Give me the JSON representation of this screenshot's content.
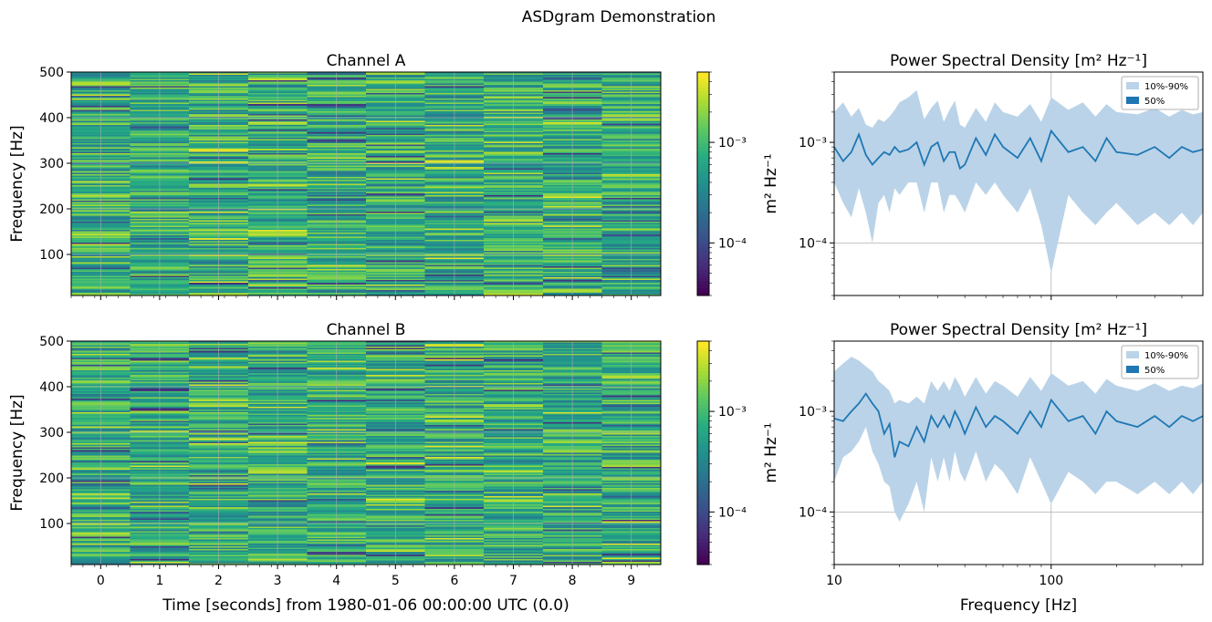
{
  "figure": {
    "title": "ASDgram Demonstration"
  },
  "colors": {
    "fill": "#1f77b4",
    "fill_light": "#bad3e8",
    "grid": "#b0b0b0"
  },
  "chart_data": [
    {
      "type": "heatmap",
      "title": "Channel A",
      "ylabel": "Frequency [Hz]",
      "xlabel": "",
      "x": [
        0,
        1,
        2,
        3,
        4,
        5,
        6,
        7,
        8,
        9
      ],
      "xlim": [
        -0.5,
        9.5
      ],
      "ylim": [
        10,
        500
      ],
      "yticks": [
        100,
        200,
        300,
        400,
        500
      ],
      "colorbar": {
        "label": "m² Hz⁻¹",
        "scale": "log",
        "range": [
          3e-05,
          0.005
        ],
        "ticks": [
          "10⁻⁴",
          "10⁻³"
        ]
      },
      "colormap": "viridis",
      "seed": 11
    },
    {
      "type": "line",
      "title": "Power Spectral Density [m² Hz⁻¹]",
      "xscale": "log",
      "yscale": "log",
      "xlim": [
        10,
        500
      ],
      "ylim": [
        3e-05,
        0.005
      ],
      "yticks": [
        "10⁻⁴",
        "10⁻³"
      ],
      "xticks": [],
      "grid": true,
      "legend": {
        "placement": "upper-right",
        "entries": [
          "10%-90%",
          "50%"
        ]
      },
      "series": [
        {
          "name": "50%",
          "x": [
            10,
            11,
            12,
            13,
            14,
            15,
            16,
            17,
            18,
            19,
            20,
            22,
            24,
            26,
            28,
            30,
            32,
            34,
            36,
            38,
            40,
            45,
            50,
            55,
            60,
            70,
            80,
            90,
            100,
            120,
            140,
            160,
            180,
            200,
            250,
            300,
            350,
            400,
            450,
            500
          ],
          "y": [
            0.0009,
            0.00065,
            0.0008,
            0.0012,
            0.00075,
            0.0006,
            0.0007,
            0.0008,
            0.00075,
            0.0009,
            0.0008,
            0.00085,
            0.001,
            0.0006,
            0.0009,
            0.001,
            0.00065,
            0.0008,
            0.0008,
            0.00055,
            0.0006,
            0.0011,
            0.00075,
            0.0012,
            0.0009,
            0.0007,
            0.0011,
            0.00065,
            0.0013,
            0.0008,
            0.0009,
            0.00065,
            0.0011,
            0.0008,
            0.00075,
            0.0009,
            0.0007,
            0.0009,
            0.0008,
            0.00085
          ]
        },
        {
          "name": "10%-90%",
          "x": [
            10,
            11,
            12,
            13,
            14,
            15,
            16,
            17,
            18,
            19,
            20,
            22,
            24,
            26,
            28,
            30,
            32,
            34,
            36,
            38,
            40,
            45,
            50,
            55,
            60,
            70,
            80,
            90,
            100,
            120,
            140,
            160,
            180,
            200,
            250,
            300,
            350,
            400,
            450,
            500
          ],
          "low": [
            0.0004,
            0.00025,
            0.00018,
            0.00035,
            0.0002,
            0.0001,
            0.00025,
            0.0003,
            0.0002,
            0.00035,
            0.0003,
            0.0004,
            0.0004,
            0.0002,
            0.0004,
            0.0004,
            0.0002,
            0.0003,
            0.0003,
            0.00025,
            0.0002,
            0.0004,
            0.0003,
            0.0004,
            0.0003,
            0.0002,
            0.00035,
            0.00015,
            5e-05,
            0.0003,
            0.0002,
            0.00015,
            0.0002,
            0.00025,
            0.00015,
            0.0002,
            0.00015,
            0.0002,
            0.00015,
            0.0002
          ],
          "high": [
            0.002,
            0.0025,
            0.0018,
            0.0022,
            0.0015,
            0.0014,
            0.0017,
            0.0016,
            0.0018,
            0.0021,
            0.0025,
            0.0028,
            0.0033,
            0.0017,
            0.0022,
            0.0026,
            0.0016,
            0.0021,
            0.0026,
            0.0015,
            0.0014,
            0.0022,
            0.0016,
            0.0025,
            0.002,
            0.0018,
            0.0024,
            0.0016,
            0.0028,
            0.0021,
            0.0025,
            0.0018,
            0.0024,
            0.002,
            0.0019,
            0.0022,
            0.0018,
            0.0021,
            0.0019,
            0.002
          ]
        }
      ]
    },
    {
      "type": "heatmap",
      "title": "Channel B",
      "ylabel": "Frequency [Hz]",
      "xlabel": "Time [seconds] from 1980-01-06 00:00:00 UTC (0.0)",
      "x": [
        0,
        1,
        2,
        3,
        4,
        5,
        6,
        7,
        8,
        9
      ],
      "xticks": [
        "0",
        "1",
        "2",
        "3",
        "4",
        "5",
        "6",
        "7",
        "8",
        "9"
      ],
      "xlim": [
        -0.5,
        9.5
      ],
      "ylim": [
        10,
        500
      ],
      "yticks": [
        100,
        200,
        300,
        400,
        500
      ],
      "colorbar": {
        "label": "m² Hz⁻¹",
        "scale": "log",
        "range": [
          3e-05,
          0.005
        ],
        "ticks": [
          "10⁻⁴",
          "10⁻³"
        ]
      },
      "colormap": "viridis",
      "seed": 29
    },
    {
      "type": "line",
      "title": "Power Spectral Density [m² Hz⁻¹]",
      "xscale": "log",
      "yscale": "log",
      "xlim": [
        10,
        500
      ],
      "ylim": [
        3e-05,
        0.005
      ],
      "xlabel": "Frequency [Hz]",
      "xticks": [
        "10",
        "100"
      ],
      "yticks": [
        "10⁻⁴",
        "10⁻³"
      ],
      "grid": true,
      "legend": {
        "placement": "upper-right",
        "entries": [
          "10%-90%",
          "50%"
        ]
      },
      "series": [
        {
          "name": "50%",
          "x": [
            10,
            11,
            12,
            13,
            14,
            15,
            16,
            17,
            18,
            19,
            20,
            22,
            24,
            26,
            28,
            30,
            32,
            34,
            36,
            38,
            40,
            45,
            50,
            55,
            60,
            70,
            80,
            90,
            100,
            120,
            140,
            160,
            180,
            200,
            250,
            300,
            350,
            400,
            450,
            500
          ],
          "y": [
            0.00085,
            0.0008,
            0.001,
            0.0012,
            0.0015,
            0.0012,
            0.001,
            0.0006,
            0.00075,
            0.00035,
            0.0005,
            0.00045,
            0.0007,
            0.0005,
            0.0009,
            0.0007,
            0.0009,
            0.0007,
            0.001,
            0.0008,
            0.0006,
            0.0011,
            0.0007,
            0.0009,
            0.0008,
            0.0006,
            0.001,
            0.0007,
            0.0013,
            0.0008,
            0.0009,
            0.0006,
            0.001,
            0.0008,
            0.0007,
            0.0009,
            0.0007,
            0.0009,
            0.0008,
            0.0009
          ]
        },
        {
          "name": "10%-90%",
          "x": [
            10,
            11,
            12,
            13,
            14,
            15,
            16,
            17,
            18,
            19,
            20,
            22,
            24,
            26,
            28,
            30,
            32,
            34,
            36,
            38,
            40,
            45,
            50,
            55,
            60,
            70,
            80,
            90,
            100,
            120,
            140,
            160,
            180,
            200,
            250,
            300,
            350,
            400,
            450,
            500
          ],
          "low": [
            0.0002,
            0.00035,
            0.0004,
            0.0005,
            0.0007,
            0.0004,
            0.0003,
            0.0002,
            0.00018,
            0.0001,
            8e-05,
            0.00012,
            0.0002,
            0.0001,
            0.00035,
            0.0002,
            0.00035,
            0.0002,
            0.0004,
            0.00025,
            0.0002,
            0.0004,
            0.0002,
            0.0003,
            0.00025,
            0.00015,
            0.00035,
            0.0002,
            0.00012,
            0.00025,
            0.0002,
            0.00015,
            0.0002,
            0.0002,
            0.00015,
            0.0002,
            0.00015,
            0.0002,
            0.00015,
            0.0002
          ],
          "high": [
            0.0025,
            0.003,
            0.0035,
            0.0032,
            0.0028,
            0.0025,
            0.002,
            0.0018,
            0.0016,
            0.0012,
            0.0013,
            0.0012,
            0.0014,
            0.0012,
            0.002,
            0.0016,
            0.002,
            0.0016,
            0.0022,
            0.0018,
            0.0014,
            0.0022,
            0.0015,
            0.002,
            0.0018,
            0.0014,
            0.0022,
            0.0016,
            0.0024,
            0.0018,
            0.002,
            0.0015,
            0.0021,
            0.0018,
            0.0016,
            0.0019,
            0.0016,
            0.0018,
            0.0017,
            0.0019
          ]
        }
      ]
    }
  ]
}
